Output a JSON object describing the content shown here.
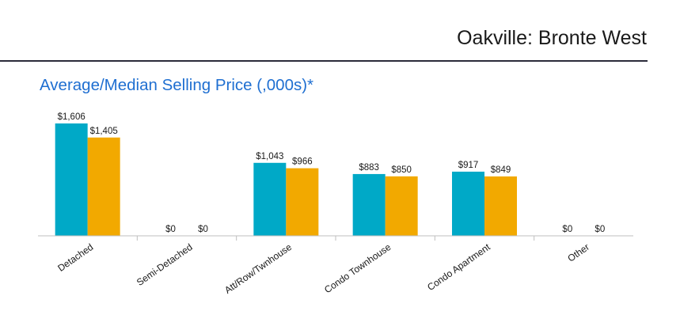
{
  "header": {
    "title": "Oakville: Bronte West"
  },
  "colors": {
    "average": "#00a9c7",
    "median": "#f2a900",
    "title": "#1f6fd1"
  },
  "chart_data": {
    "type": "bar",
    "title": "Average/Median Selling Price (,000s)*",
    "xlabel": "",
    "ylabel": "",
    "ylim": [
      0,
      1800
    ],
    "grid": false,
    "categories": [
      "Detached",
      "Semi-Detached",
      "Att/Row/Twnhouse",
      "Condo Townhouse",
      "Condo Apartment",
      "Other"
    ],
    "series": [
      {
        "name": "Average",
        "values": [
          1606,
          0,
          1043,
          883,
          917,
          0
        ],
        "labels": [
          "$1,606",
          "$0",
          "$1,043",
          "$883",
          "$917",
          "$0"
        ]
      },
      {
        "name": "Median",
        "values": [
          1405,
          0,
          966,
          850,
          849,
          0
        ],
        "labels": [
          "$1,405",
          "$0",
          "$966",
          "$850",
          "$849",
          "$0"
        ]
      }
    ]
  }
}
